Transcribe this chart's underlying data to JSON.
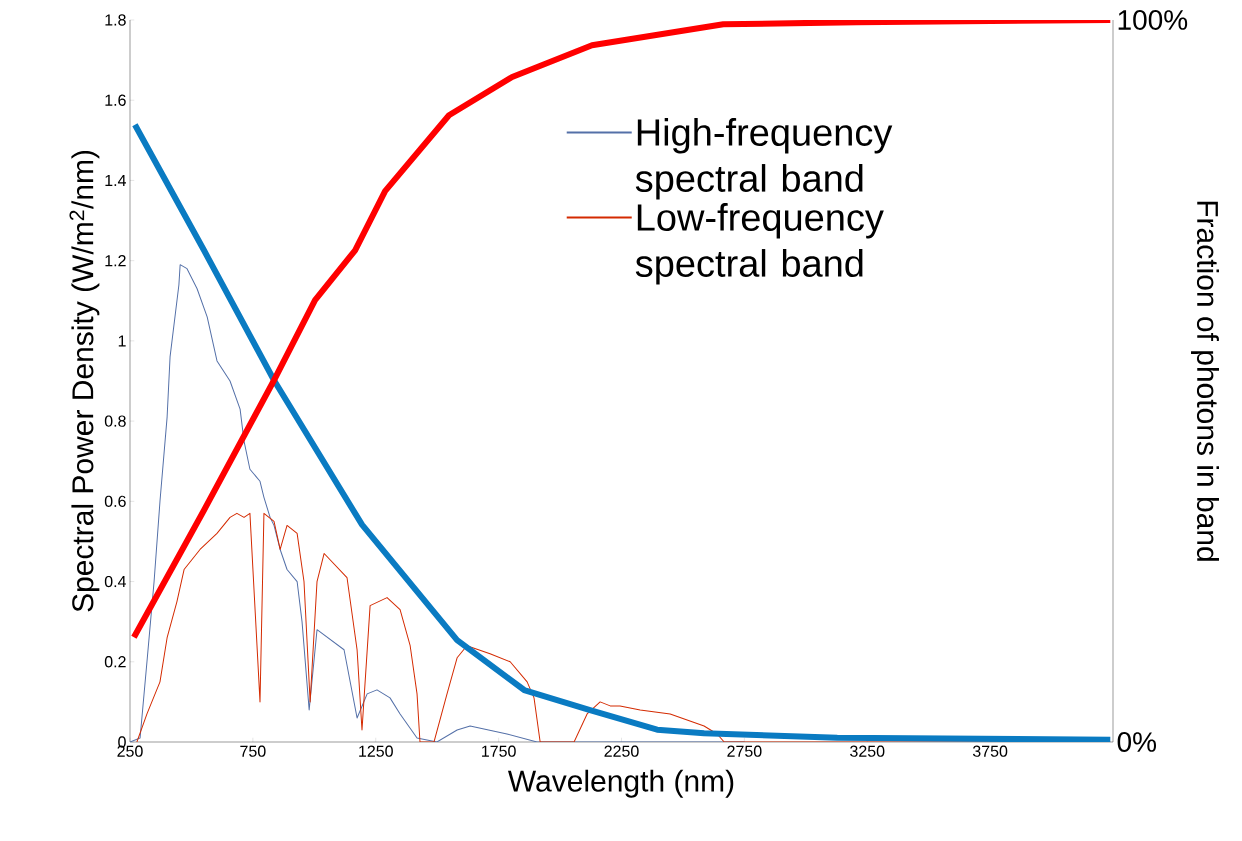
{
  "chart_data": {
    "type": "line",
    "xlabel": "Wavelength (nm)",
    "ylabel": "Spectral Power Density (W/m$^{2}$/nm)",
    "y2label": "Fraction of photons in band",
    "xlim": [
      250,
      4250
    ],
    "xticks": [
      250,
      750,
      1250,
      1750,
      2250,
      2750,
      3250,
      3750
    ],
    "ylim": [
      0,
      1.8
    ],
    "yticks": [
      0,
      {
        "value": 0.2,
        "label": "0.2"
      },
      {
        "value": 0.4,
        "label": "0.4"
      },
      {
        "value": 0.6,
        "label": "0.6"
      },
      {
        "value": 0.8,
        "label": "0.8"
      },
      1,
      {
        "value": 1.2,
        "label": "1.2"
      },
      {
        "value": 1.4,
        "label": "1.4"
      },
      {
        "value": 1.6,
        "label": "1.6"
      },
      {
        "value": 1.8,
        "label": "1.8"
      }
    ],
    "y2lim": [
      0,
      100
    ],
    "y2ticks": [
      {
        "value": 0,
        "label": "0%"
      },
      {
        "value": 100,
        "label": "100%"
      }
    ],
    "legend": "top right",
    "marker": "none",
    "line_style": "solid",
    "grid": false,
    "series": [
      {
        "name": "High-frequency spectral band",
        "color": "#5470a8",
        "x": [
          250,
          291,
          319,
          348,
          372,
          401,
          413,
          449,
          454,
          482,
          523,
          564,
          604,
          657,
          698,
          714,
          738,
          779,
          795,
          820,
          836,
          861,
          889,
          930,
          950,
          979,
          1011,
          1121,
          1174,
          1215,
          1255,
          1308,
          1349,
          1418,
          1499,
          1581,
          1634,
          1784,
          1906,
          2750
        ],
        "values": [
          0,
          0.01,
          0.2,
          0.4,
          0.6,
          0.81,
          0.96,
          1.14,
          1.19,
          1.18,
          1.13,
          1.06,
          0.95,
          0.9,
          0.83,
          0.75,
          0.68,
          0.65,
          0.61,
          0.56,
          0.54,
          0.48,
          0.43,
          0.4,
          0.3,
          0.08,
          0.28,
          0.23,
          0.06,
          0.12,
          0.13,
          0.11,
          0.07,
          0.01,
          0,
          0.03,
          0.04,
          0.02,
          0,
          0
        ]
      },
      {
        "name": "Low-frequency spectral band",
        "color": "#d42a00",
        "x": [
          278,
          319,
          372,
          401,
          441,
          470,
          535,
          604,
          657,
          685,
          714,
          738,
          779,
          795,
          836,
          861,
          889,
          930,
          958,
          983,
          1011,
          1040,
          1133,
          1174,
          1194,
          1227,
          1296,
          1349,
          1390,
          1418,
          1430,
          1487,
          1540,
          1581,
          1621,
          1715,
          1797,
          1866,
          1894,
          1919,
          2057,
          2110,
          2163,
          2204,
          2244,
          2326,
          2448,
          2586,
          2639,
          2668,
          4239
        ],
        "values": [
          0,
          0.07,
          0.15,
          0.26,
          0.35,
          0.43,
          0.48,
          0.52,
          0.56,
          0.57,
          0.56,
          0.57,
          0.1,
          0.57,
          0.55,
          0.48,
          0.54,
          0.52,
          0.4,
          0.1,
          0.4,
          0.47,
          0.41,
          0.23,
          0.03,
          0.34,
          0.36,
          0.33,
          0.24,
          0.12,
          0,
          0,
          0.12,
          0.21,
          0.24,
          0.22,
          0.2,
          0.15,
          0.11,
          0,
          0,
          0.07,
          0.1,
          0.09,
          0.09,
          0.08,
          0.07,
          0.04,
          0.02,
          0,
          0
        ]
      },
      {
        "type": "line",
        "axis": "y2",
        "color": "#0a7bc2",
        "x": [
          270,
          551,
          836,
          1194,
          1581,
          1854,
          2122,
          2395,
          2586,
          3128,
          4239
        ],
        "values": [
          85.5,
          68.1,
          50.1,
          30.1,
          14.1,
          7.2,
          4.4,
          1.7,
          1.2,
          0.6,
          0.3
        ]
      },
      {
        "type": "line",
        "axis": "y2",
        "color": "#ff0000",
        "x": [
          266,
          551,
          836,
          1003,
          1166,
          1288,
          1548,
          1805,
          2130,
          2664,
          3209,
          4239
        ],
        "values": [
          14.5,
          32.1,
          50.1,
          61.2,
          68.1,
          76.3,
          86.8,
          92.1,
          96.5,
          99.4,
          99.7,
          100
        ]
      }
    ]
  }
}
